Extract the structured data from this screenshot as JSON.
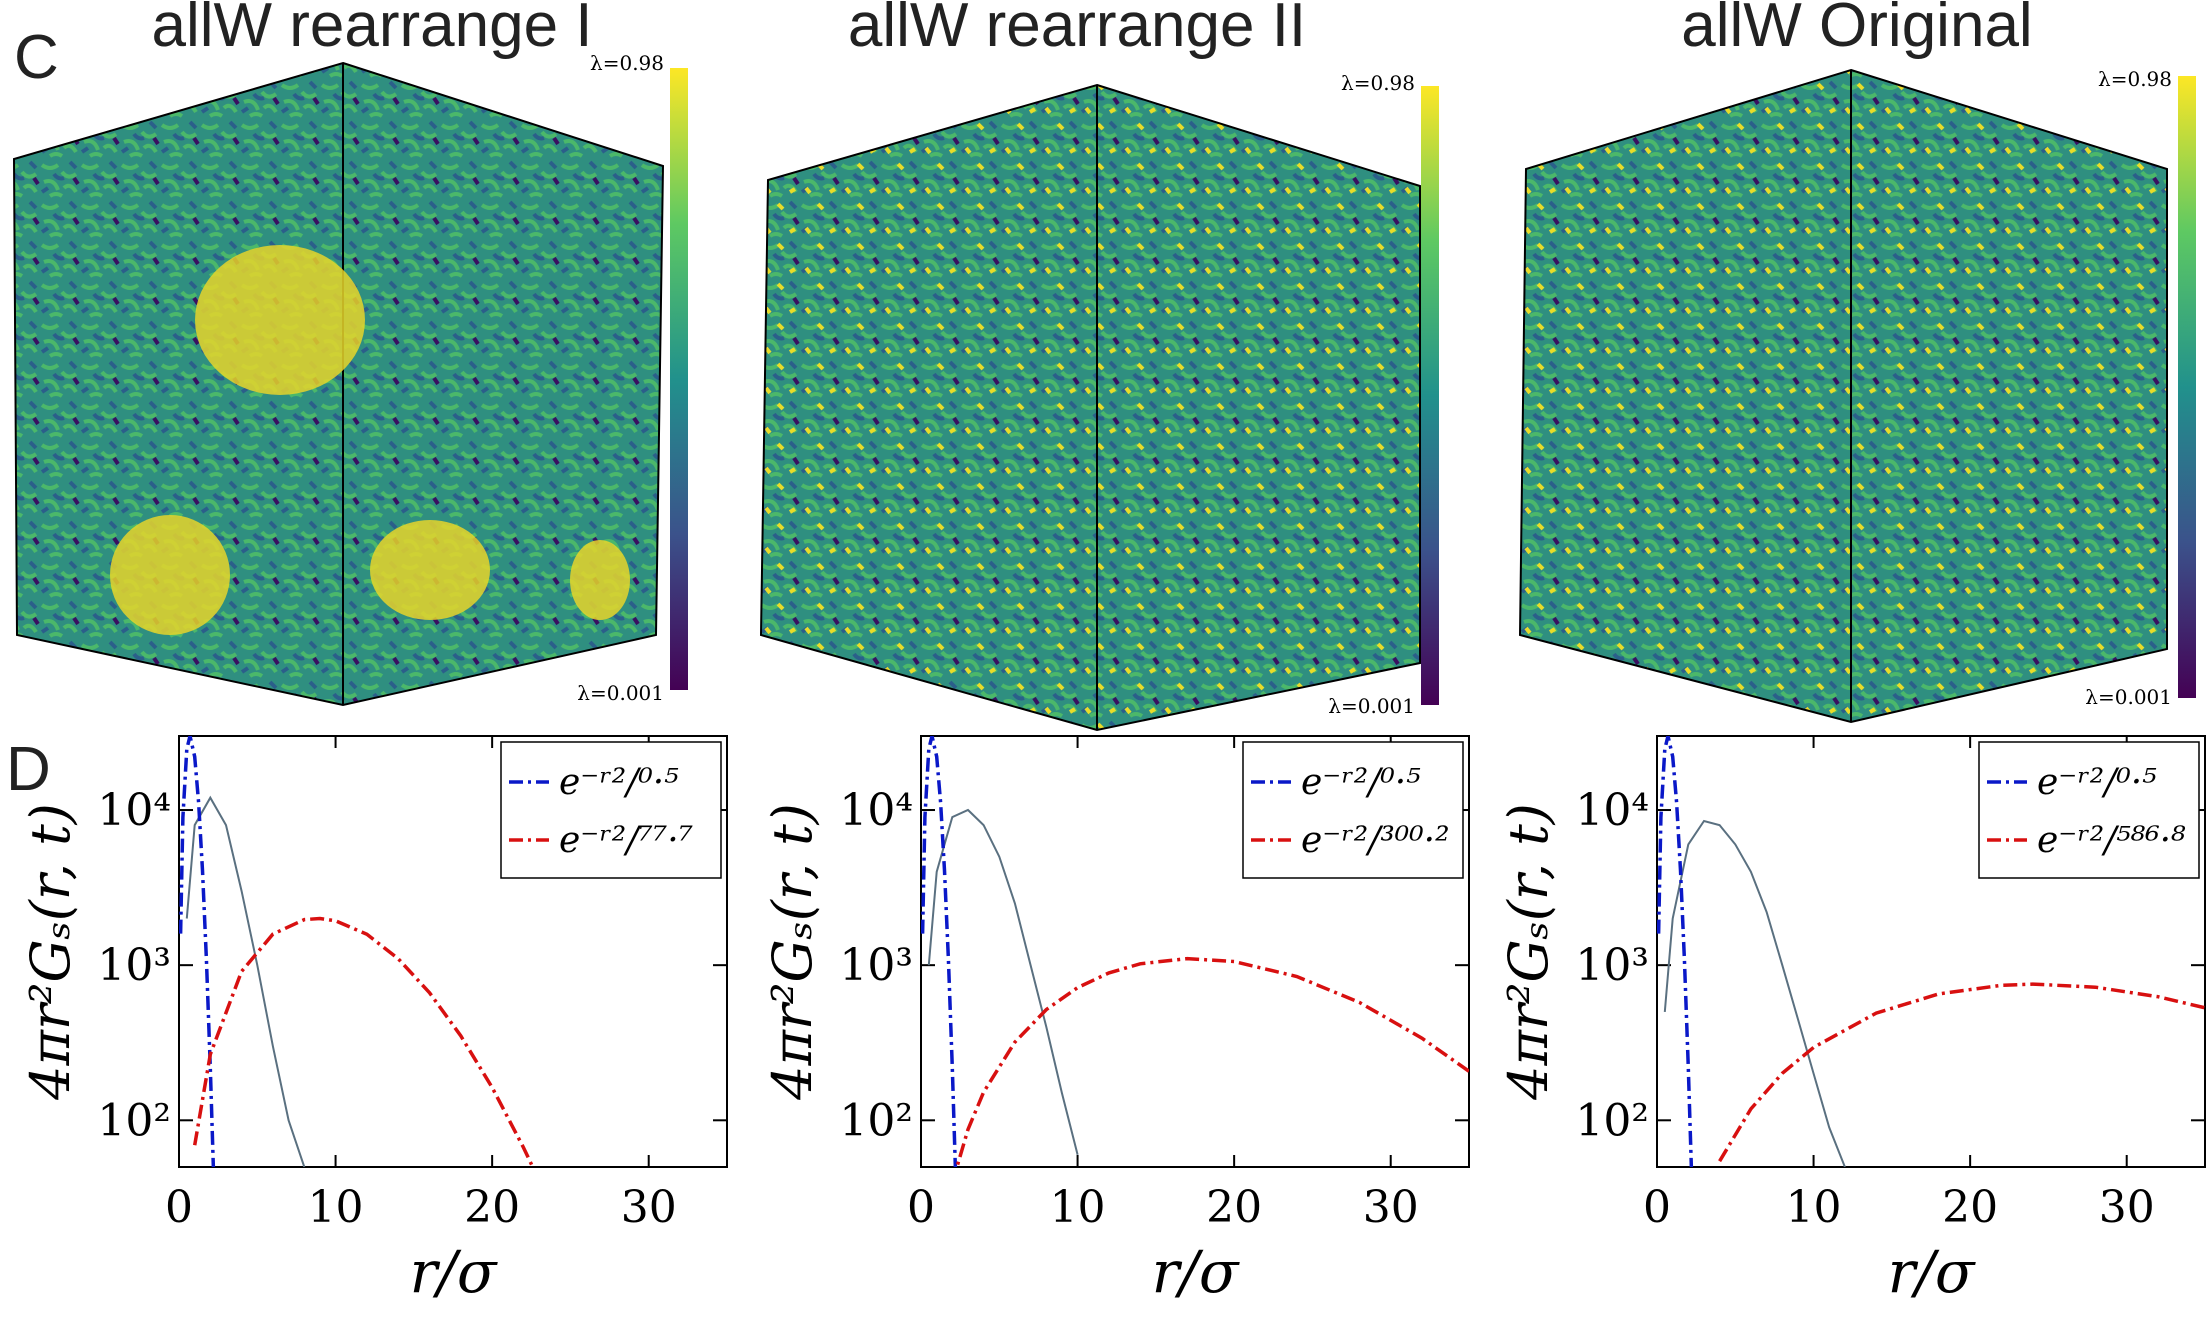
{
  "panel_labels": [
    "C",
    "D"
  ],
  "renders": [
    {
      "title": "allW rearrange I",
      "colorbar_top": "λ=0.98",
      "colorbar_bottom": "λ=0.001"
    },
    {
      "title": "allW rearrange II",
      "colorbar_top": "λ=0.98",
      "colorbar_bottom": "λ=0.001"
    },
    {
      "title": "allW Original",
      "colorbar_top": "λ=0.98",
      "colorbar_bottom": "λ=0.001"
    }
  ],
  "chart_data": [
    {
      "type": "line",
      "xlabel": "r/σ",
      "ylabel": "4πr²Gₛ(r, t)",
      "log_y": true,
      "xlim": [
        0,
        35
      ],
      "xticks": [
        0,
        10,
        20,
        30
      ],
      "ylim": [
        50,
        30000
      ],
      "yticks": [
        {
          "value": 100,
          "label": "10²"
        },
        {
          "value": 1000,
          "label": "10³"
        },
        {
          "value": 10000,
          "label": "10⁴"
        }
      ],
      "legend": "upper right",
      "series": [
        {
          "color": "#5a7080",
          "dash": "solid",
          "x": [
            0.5,
            1,
            2,
            3,
            4,
            5,
            6,
            7,
            8
          ],
          "values": [
            2000,
            8000,
            12000,
            8000,
            3000,
            1000,
            300,
            100,
            50
          ]
        },
        {
          "name": "e⁻ʳ²/⁰·⁵",
          "color": "#0a18c8",
          "dash": "dashdot",
          "x": [
            0.1,
            0.25,
            0.5,
            0.7,
            1,
            1.25,
            1.5,
            1.75,
            2,
            2.25
          ],
          "values": [
            1598,
            8991,
            24716,
            29985,
            22060,
            11190,
            4074,
            1093,
            219,
            33.1
          ]
        },
        {
          "name": "e⁻ʳ²/⁷⁷·⁷",
          "color": "#d81010",
          "dash": "dashdot",
          "x": [
            1,
            2,
            4,
            6,
            8,
            9,
            10,
            12,
            14,
            16,
            18,
            20,
            22,
            23
          ],
          "values": [
            69.1,
            265.9,
            911,
            1586,
            1966,
            2000,
            1933,
            1580,
            1101,
            664,
            350,
            163,
            66.7,
            40.9
          ]
        }
      ]
    },
    {
      "type": "line",
      "xlabel": "r/σ",
      "ylabel": "4πr²Gₛ(r, t)",
      "log_y": true,
      "xlim": [
        0,
        35
      ],
      "xticks": [
        0,
        10,
        20,
        30
      ],
      "ylim": [
        50,
        30000
      ],
      "yticks": [
        {
          "value": 100,
          "label": "10²"
        },
        {
          "value": 1000,
          "label": "10³"
        },
        {
          "value": 10000,
          "label": "10⁴"
        }
      ],
      "legend": "upper right",
      "series": [
        {
          "color": "#5a7080",
          "dash": "solid",
          "x": [
            0.5,
            1,
            2,
            3,
            4,
            5,
            6,
            7,
            8,
            9,
            10
          ],
          "values": [
            1000,
            4000,
            9000,
            10000,
            8000,
            5000,
            2500,
            1000,
            400,
            150,
            60
          ]
        },
        {
          "name": "e⁻ʳ²/⁰·⁵",
          "color": "#0a18c8",
          "dash": "dashdot",
          "x": [
            0.1,
            0.25,
            0.5,
            0.7,
            1,
            1.25,
            1.5,
            1.75,
            2,
            2.25
          ],
          "values": [
            1598,
            8991,
            24716,
            29985,
            22060,
            11190,
            4074,
            1093,
            219,
            33.1
          ]
        },
        {
          "name": "e⁻ʳ²/³⁰⁰·²",
          "color": "#d81010",
          "dash": "dashdot",
          "x": [
            2,
            3,
            4,
            6,
            8,
            10,
            12,
            14,
            17,
            20,
            24,
            28,
            32,
            35
          ],
          "values": [
            39.5,
            87.3,
            151.7,
            319,
            517,
            717,
            891,
            1020,
            1103,
            1056,
            845,
            575,
            338,
            207
          ]
        }
      ]
    },
    {
      "type": "line",
      "xlabel": "r/σ",
      "ylabel": "4πr²Gₛ(r, t)",
      "log_y": true,
      "xlim": [
        0,
        35
      ],
      "xticks": [
        0,
        10,
        20,
        30
      ],
      "ylim": [
        50,
        30000
      ],
      "yticks": [
        {
          "value": 100,
          "label": "10²"
        },
        {
          "value": 1000,
          "label": "10³"
        },
        {
          "value": 10000,
          "label": "10⁴"
        }
      ],
      "legend": "upper right",
      "series": [
        {
          "color": "#5a7080",
          "dash": "solid",
          "x": [
            0.5,
            1,
            2,
            3,
            4,
            5,
            6,
            7,
            8,
            9,
            10,
            11,
            12
          ],
          "values": [
            500,
            2000,
            6000,
            8500,
            8000,
            6000,
            4000,
            2200,
            1000,
            450,
            200,
            90,
            50
          ]
        },
        {
          "name": "e⁻ʳ²/⁰·⁵",
          "color": "#0a18c8",
          "dash": "dashdot",
          "x": [
            0.1,
            0.25,
            0.5,
            0.7,
            1,
            1.25,
            1.5,
            1.75,
            2,
            2.25
          ],
          "values": [
            1598,
            8991,
            24716,
            29985,
            22060,
            11190,
            4074,
            1093,
            219,
            33.1
          ]
        },
        {
          "name": "e⁻ʳ²/⁵⁸⁶·⁸",
          "color": "#d81010",
          "dash": "dashdot",
          "x": [
            4,
            6,
            8,
            10,
            14,
            18,
            22,
            24,
            28,
            32,
            35
          ],
          "values": [
            54.5,
            118.5,
            200.8,
            295,
            491,
            653,
            742,
            755,
            721,
            626,
            531
          ]
        }
      ]
    }
  ]
}
